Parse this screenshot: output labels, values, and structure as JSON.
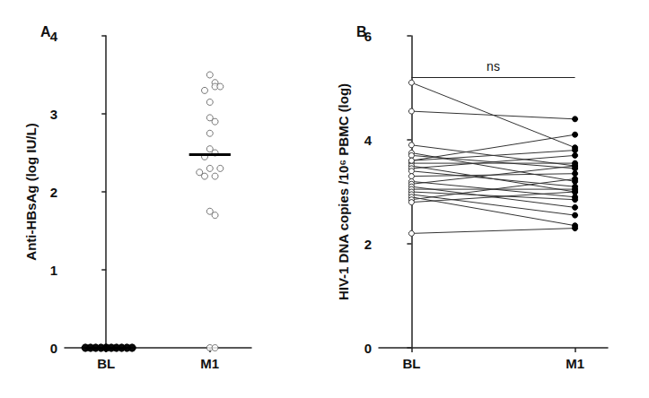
{
  "chart_data": [
    {
      "type": "scatter",
      "title": "A",
      "y_label": "Anti-HBsAg (log IU/L)",
      "categories": [
        "BL",
        "M1"
      ],
      "values": [
        [
          0,
          0,
          0,
          0,
          0,
          0,
          0,
          0,
          0,
          0,
          0,
          0,
          0,
          0,
          0,
          0,
          0,
          0,
          0,
          0,
          0
        ],
        [
          3.5,
          3.4,
          3.35,
          3.3,
          3.35,
          3.15,
          2.95,
          2.9,
          2.75,
          2.55,
          2.5,
          2.45,
          2.3,
          2.2,
          2.2,
          2.3,
          2.25,
          1.75,
          1.7,
          0,
          0
        ]
      ],
      "median": [
        0,
        2.48
      ],
      "ylim": [
        0,
        4
      ],
      "yticks": [
        0,
        1,
        2,
        3,
        4
      ],
      "grid": false,
      "color": "#000000"
    },
    {
      "type": "line",
      "title": "B",
      "y_label": "HIV-1 DNA copies /10⁶ PBMC (log)",
      "categories": [
        "BL",
        "M1"
      ],
      "values": [
        [
          5.1,
          3.85
        ],
        [
          4.55,
          4.4
        ],
        [
          3.9,
          3.5
        ],
        [
          3.75,
          3.2
        ],
        [
          3.7,
          3.45
        ],
        [
          3.6,
          3.8
        ],
        [
          3.55,
          3.55
        ],
        [
          3.5,
          3.0
        ],
        [
          3.45,
          3.7
        ],
        [
          3.4,
          3.1
        ],
        [
          3.3,
          3.35
        ],
        [
          3.2,
          2.9
        ],
        [
          3.15,
          3.5
        ],
        [
          3.1,
          2.7
        ],
        [
          3.05,
          3.05
        ],
        [
          3.0,
          2.85
        ],
        [
          2.95,
          2.55
        ],
        [
          2.9,
          2.35
        ],
        [
          2.85,
          3.25
        ],
        [
          2.8,
          3.0
        ],
        [
          2.2,
          2.3
        ],
        [
          3.6,
          4.1
        ]
      ],
      "annotation": {
        "text": "ns",
        "y": 5.2
      },
      "ylim": [
        0,
        6
      ],
      "yticks": [
        0,
        2,
        4,
        6
      ],
      "grid": false,
      "color": "#000000"
    }
  ]
}
